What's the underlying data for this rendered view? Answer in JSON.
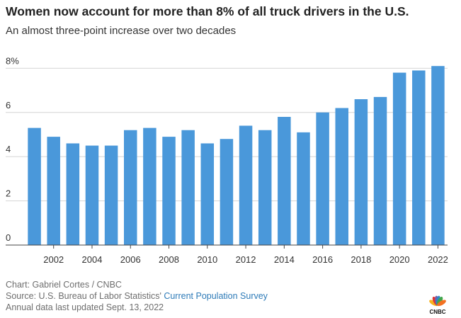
{
  "header": {
    "title": "Women now account for more than 8% of all truck drivers in the U.S.",
    "subtitle": "An almost three-point increase over two decades"
  },
  "chart_data": {
    "type": "bar",
    "title": "Women now account for more than 8% of all truck drivers in the U.S.",
    "subtitle": "An almost three-point increase over two decades",
    "categories": [
      "2001",
      "2002",
      "2003",
      "2004",
      "2005",
      "2006",
      "2007",
      "2008",
      "2009",
      "2010",
      "2011",
      "2012",
      "2013",
      "2014",
      "2015",
      "2016",
      "2017",
      "2018",
      "2019",
      "2020",
      "2021",
      "2022"
    ],
    "values": [
      5.3,
      4.9,
      4.6,
      4.5,
      4.5,
      5.2,
      5.3,
      4.9,
      5.2,
      4.6,
      4.8,
      5.4,
      5.2,
      5.8,
      5.1,
      6.0,
      6.2,
      6.6,
      6.7,
      7.8,
      7.9,
      8.1
    ],
    "x_tick_labels": [
      "2002",
      "2004",
      "2006",
      "2008",
      "2010",
      "2012",
      "2014",
      "2016",
      "2018",
      "2020",
      "2022"
    ],
    "y_ticks": [
      0,
      2,
      4,
      6,
      8
    ],
    "y_tick_labels": [
      "0",
      "2",
      "4",
      "6",
      "8%"
    ],
    "ylim": [
      0,
      8.3
    ],
    "xlabel": "",
    "ylabel": "",
    "grid": true,
    "bar_color": "#4a98da"
  },
  "footer": {
    "credit": "Chart: Gabriel Cortes / CNBC",
    "source_prefix": "Source: U.S. Bureau of Labor Statistics' ",
    "source_link": "Current Population Survey",
    "updated": "Annual data last updated Sept. 13, 2022"
  },
  "logo": {
    "text": "CNBC",
    "peacock_colors": [
      "#f9b21d",
      "#e1352e",
      "#7b5aa6",
      "#2d88c8",
      "#43a64b",
      "#f37121"
    ]
  }
}
